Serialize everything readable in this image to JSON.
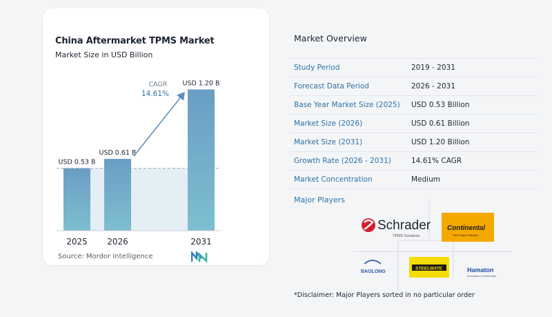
{
  "chart_data": {
    "type": "bar",
    "title": "China Aftermarket TPMS Market",
    "subtitle": "Market Size in USD Billion",
    "categories": [
      "2025",
      "2026",
      "2031"
    ],
    "values": [
      0.53,
      0.61,
      1.2
    ],
    "data_labels": [
      "USD 0.53 B",
      "USD 0.61 B",
      "USD 1.20 B"
    ],
    "annotation": {
      "label": "CAGR",
      "value": "14.61%"
    },
    "ylim": [
      0,
      1.25
    ],
    "colors": {
      "bar_top": "#6b9dc4",
      "bar_bottom": "#7dbfd0",
      "band": "#e4eef5",
      "arrow": "#5b8fbf"
    }
  },
  "source": "Source: Mordor Intelligence",
  "overview": {
    "title": "Market Overview",
    "rows": [
      {
        "label": "Study Period",
        "value": "2019 - 2031"
      },
      {
        "label": "Forecast Data Period",
        "value": "2026 - 2031"
      },
      {
        "label": "Base Year Market Size (2025)",
        "value": "USD 0.53 Billion"
      },
      {
        "label": "Market Size (2026)",
        "value": "USD 0.61 Billion"
      },
      {
        "label": "Market Size (2031)",
        "value": "USD 1.20 Billion"
      },
      {
        "label": "Growth Rate (2026 - 2031)",
        "value": "14.61% CAGR"
      },
      {
        "label": "Market Concentration",
        "value": "Medium"
      }
    ]
  },
  "players": {
    "title": "Major Players",
    "logos": {
      "schrader": "Schrader",
      "schrader_sub": "TPMS Solutions",
      "continental": "Continental",
      "continental_sub": "The Future in Motion",
      "baolong": "BAOLONG",
      "steelmate": "STEELMATE",
      "hamaton": "Hamaton",
      "hamaton_sub": "Innovation to Perfection"
    }
  },
  "disclaimer": "*Disclaimer: Major Players sorted in no particular order"
}
